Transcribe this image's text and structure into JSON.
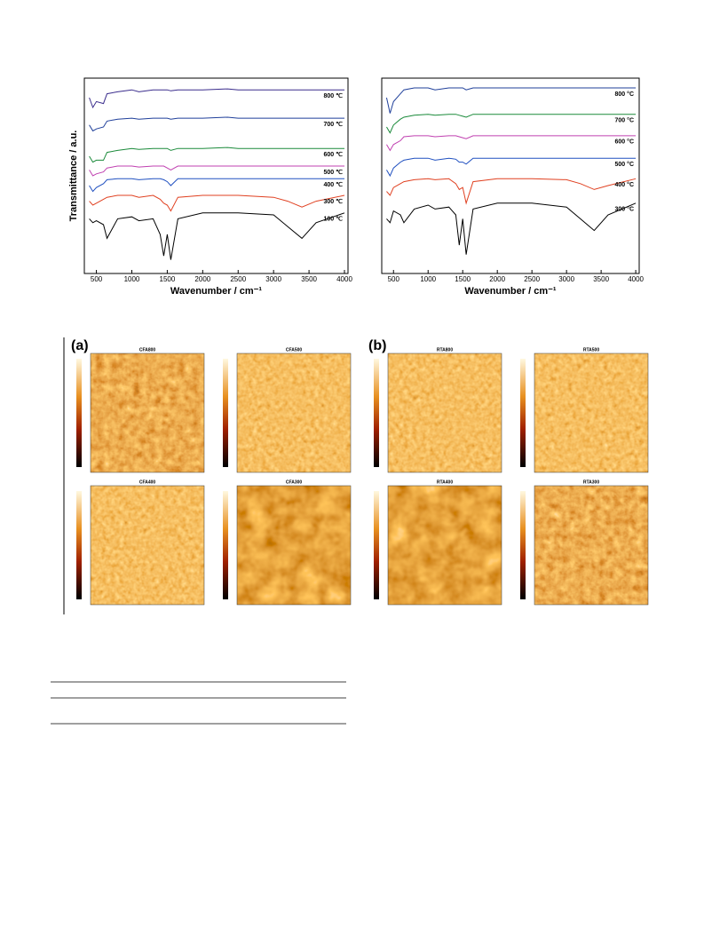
{
  "chart_data": [
    {
      "type": "line",
      "y_label": "Transmittance / a.u.",
      "x_label": "Wavenumber / cm⁻¹",
      "x": [
        400,
        450,
        500,
        600,
        650,
        800,
        1000,
        1100,
        1300,
        1400,
        1450,
        1500,
        1550,
        1650,
        2000,
        2350,
        2500,
        3000,
        3200,
        3400,
        3600,
        4000
      ],
      "xlim": [
        330,
        4050
      ],
      "xticks": [
        500,
        1000,
        1500,
        2000,
        2500,
        3000,
        3500,
        4000
      ],
      "ylim": [
        0,
        100
      ],
      "series": [
        {
          "name": "800 ℃",
          "color": "#3a2c8c",
          "values": [
            90,
            85,
            88,
            87,
            92,
            93,
            94,
            93,
            94,
            94,
            94,
            94,
            93.5,
            94,
            94,
            94.5,
            94,
            94,
            94,
            94,
            94,
            94
          ]
        },
        {
          "name": "700 ℃",
          "color": "#1f3f9a",
          "values": [
            76,
            73,
            74,
            75,
            78,
            79,
            79.5,
            79,
            79.5,
            79.5,
            79.5,
            79.5,
            79,
            79.5,
            79.5,
            80,
            79.5,
            79.5,
            79.5,
            79.5,
            79.5,
            79.5
          ]
        },
        {
          "name": "600 ℃",
          "color": "#1a8a3a",
          "values": [
            60,
            57,
            58,
            58,
            62,
            63,
            64,
            63.5,
            64,
            64,
            64,
            64,
            63,
            64,
            64,
            64.5,
            64,
            64,
            64,
            64,
            64,
            64
          ]
        },
        {
          "name": "500 ℃",
          "color": "#c040b0",
          "values": [
            53,
            50,
            51,
            52,
            54,
            55,
            55,
            54.5,
            55,
            55,
            55,
            54,
            53,
            55,
            55,
            55,
            55,
            55,
            55,
            55,
            55,
            55
          ]
        },
        {
          "name": "400 ℃",
          "color": "#2050c0",
          "values": [
            45,
            42,
            44,
            46,
            48,
            48.5,
            48.5,
            48,
            48.5,
            48.5,
            48,
            47,
            45,
            48.5,
            48.5,
            48.5,
            48.5,
            48.5,
            48.5,
            48.5,
            48.5,
            48.5
          ]
        },
        {
          "name": "300 ℃",
          "color": "#e04020",
          "values": [
            37,
            35,
            36,
            38,
            39,
            40,
            40,
            39,
            40,
            38,
            36,
            35,
            32,
            39,
            40,
            40,
            40,
            39,
            37,
            34,
            37,
            40
          ]
        },
        {
          "name": "100 ℃",
          "color": "#000000",
          "values": [
            28,
            26,
            27,
            25,
            18,
            28,
            29,
            27,
            28,
            20,
            9,
            20,
            7,
            28,
            31,
            31,
            31,
            30,
            24,
            18,
            26,
            31
          ]
        }
      ]
    },
    {
      "type": "line",
      "x_label": "Wavenumber / cm⁻¹",
      "x": [
        400,
        450,
        500,
        600,
        650,
        800,
        1000,
        1100,
        1300,
        1400,
        1450,
        1500,
        1550,
        1650,
        2000,
        2350,
        2500,
        3000,
        3200,
        3400,
        3600,
        4000
      ],
      "xlim": [
        330,
        4050
      ],
      "xticks": [
        500,
        1000,
        1500,
        2000,
        2500,
        3000,
        3500,
        4000
      ],
      "ylim": [
        0,
        100
      ],
      "series": [
        {
          "name": "800 °C",
          "color": "#1f3f9a",
          "values": [
            90,
            82,
            88,
            92,
            94,
            95,
            95,
            94,
            95,
            95,
            95,
            95,
            94,
            95,
            95,
            95,
            95,
            95,
            95,
            95,
            95,
            95
          ]
        },
        {
          "name": "700 °C",
          "color": "#1a8a3a",
          "values": [
            75,
            72,
            76,
            79,
            80,
            81,
            81.5,
            81,
            81.5,
            81.5,
            81,
            80.5,
            80,
            81.5,
            81.5,
            81.5,
            81.5,
            81.5,
            81.5,
            81.5,
            81.5,
            81.5
          ]
        },
        {
          "name": "600 °C",
          "color": "#c040b0",
          "values": [
            66,
            63,
            66,
            68,
            70,
            70.5,
            70.5,
            70,
            70.5,
            70.5,
            70,
            69.5,
            69,
            70.5,
            70.5,
            70.5,
            70.5,
            70.5,
            70.5,
            70.5,
            70.5,
            70.5
          ]
        },
        {
          "name": "500 °C",
          "color": "#2050c0",
          "values": [
            53,
            50,
            54,
            57,
            58,
            59,
            59,
            58,
            59,
            58.5,
            57,
            57,
            56,
            59,
            59,
            59,
            59,
            59,
            59,
            59,
            59,
            59
          ]
        },
        {
          "name": "400 °C",
          "color": "#e04020",
          "values": [
            42,
            40,
            44,
            46,
            47,
            48,
            48.5,
            48,
            48.5,
            46,
            43,
            44,
            36,
            47,
            48.5,
            48.5,
            48.5,
            48,
            46,
            43,
            45,
            48.5
          ]
        },
        {
          "name": "300 °C",
          "color": "#000000",
          "values": [
            28,
            26,
            32,
            30,
            26,
            33,
            35,
            33,
            34,
            30,
            14.5,
            28,
            9.7,
            33,
            36,
            36,
            36,
            34,
            28,
            22,
            30,
            36
          ]
        }
      ]
    }
  ],
  "afm_figure": {
    "groups": [
      {
        "label": "(a)",
        "panels": [
          "CFA800",
          "CFA500",
          "CFA400",
          "CFA300"
        ]
      },
      {
        "label": "(b)",
        "panels": [
          "RTA800",
          "RTA500",
          "RTA400",
          "RTA300"
        ]
      }
    ]
  }
}
